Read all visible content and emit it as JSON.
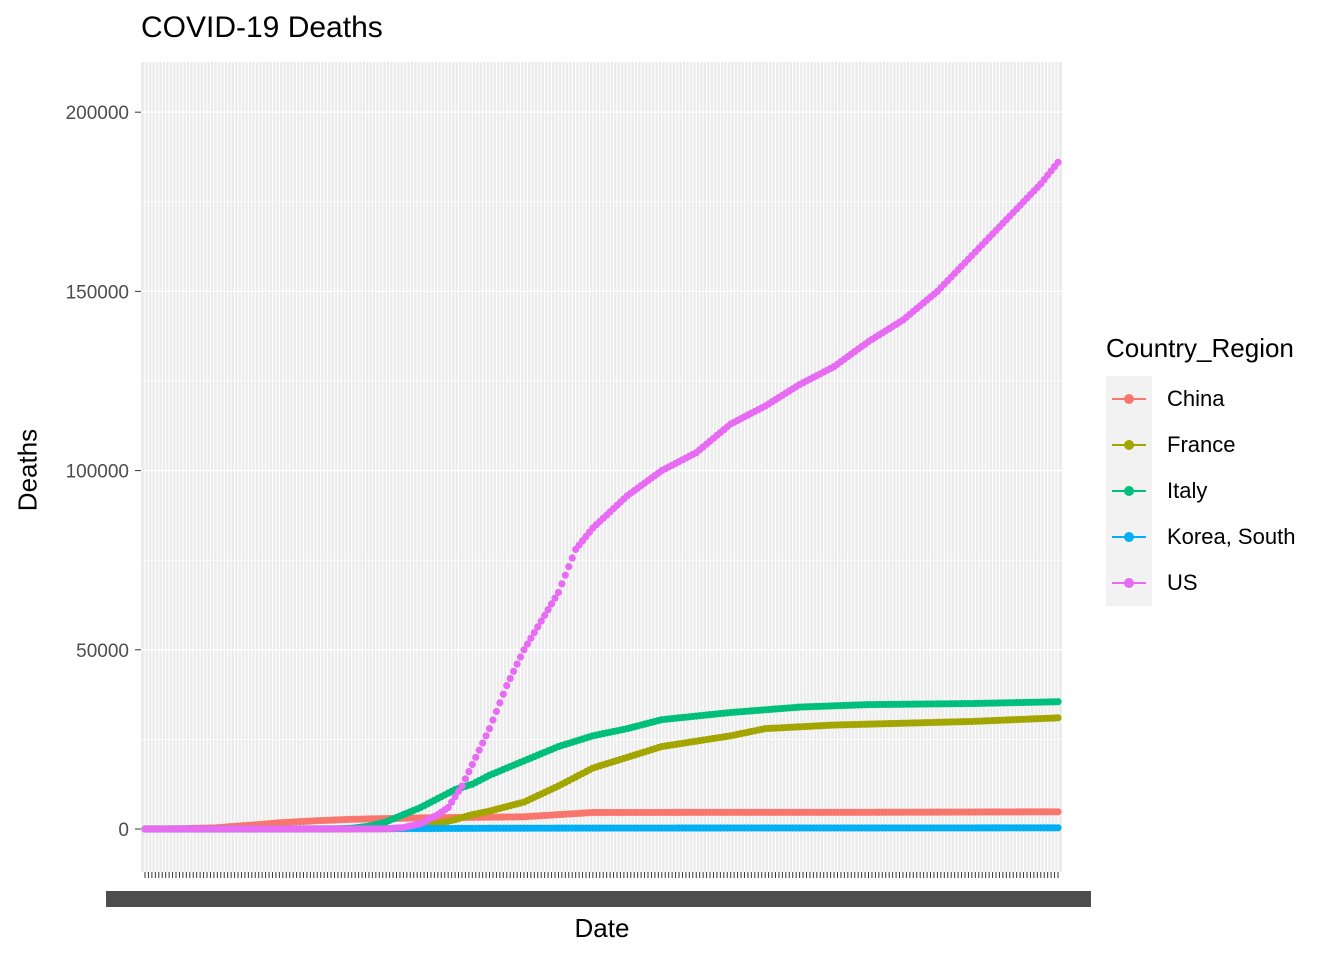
{
  "chart_data": {
    "type": "scatter",
    "title": "COVID-19 Deaths",
    "xlabel": "Date",
    "ylabel": "Deaths",
    "ylim": [
      -12000,
      214000
    ],
    "yticks": [
      0,
      50000,
      100000,
      150000,
      200000
    ],
    "x_tick_count": 266,
    "x_tick_labels_overplotted": true,
    "grid": true,
    "legend": {
      "title": "Country_Region",
      "placement": "right"
    },
    "series": [
      {
        "name": "China",
        "color": "#F8766D",
        "values": [
          [
            0,
            17
          ],
          [
            10,
            80
          ],
          [
            20,
            300
          ],
          [
            30,
            1000
          ],
          [
            40,
            1800
          ],
          [
            50,
            2300
          ],
          [
            60,
            2700
          ],
          [
            70,
            2900
          ],
          [
            80,
            3100
          ],
          [
            90,
            3200
          ],
          [
            100,
            3300
          ],
          [
            110,
            3400
          ],
          [
            130,
            4600
          ],
          [
            160,
            4634
          ],
          [
            200,
            4634
          ],
          [
            230,
            4700
          ],
          [
            265,
            4800
          ]
        ]
      },
      {
        "name": "France",
        "color": "#A3A500",
        "values": [
          [
            0,
            0
          ],
          [
            60,
            2
          ],
          [
            70,
            40
          ],
          [
            75,
            200
          ],
          [
            80,
            700
          ],
          [
            85,
            1500
          ],
          [
            90,
            2600
          ],
          [
            95,
            4000
          ],
          [
            100,
            5000
          ],
          [
            110,
            7500
          ],
          [
            120,
            12000
          ],
          [
            130,
            17000
          ],
          [
            140,
            20000
          ],
          [
            150,
            23000
          ],
          [
            170,
            26000
          ],
          [
            180,
            28000
          ],
          [
            200,
            29000
          ],
          [
            220,
            29500
          ],
          [
            240,
            30000
          ],
          [
            265,
            31000
          ]
        ]
      },
      {
        "name": "Italy",
        "color": "#00BF7D",
        "values": [
          [
            0,
            0
          ],
          [
            50,
            3
          ],
          [
            55,
            30
          ],
          [
            60,
            200
          ],
          [
            65,
            800
          ],
          [
            70,
            2000
          ],
          [
            75,
            4000
          ],
          [
            80,
            6000
          ],
          [
            85,
            8500
          ],
          [
            90,
            11000
          ],
          [
            95,
            12500
          ],
          [
            100,
            15000
          ],
          [
            110,
            19000
          ],
          [
            120,
            23000
          ],
          [
            130,
            26000
          ],
          [
            140,
            28000
          ],
          [
            150,
            30500
          ],
          [
            170,
            32500
          ],
          [
            190,
            34000
          ],
          [
            210,
            34700
          ],
          [
            240,
            35000
          ],
          [
            265,
            35500
          ]
        ]
      },
      {
        "name": "Korea, South",
        "color": "#00B0F6",
        "values": [
          [
            0,
            0
          ],
          [
            40,
            10
          ],
          [
            60,
            60
          ],
          [
            80,
            120
          ],
          [
            100,
            200
          ],
          [
            130,
            250
          ],
          [
            160,
            270
          ],
          [
            200,
            280
          ],
          [
            240,
            300
          ],
          [
            265,
            320
          ]
        ]
      },
      {
        "name": "US",
        "color": "#E76BF3",
        "values": [
          [
            0,
            0
          ],
          [
            50,
            1
          ],
          [
            60,
            10
          ],
          [
            70,
            60
          ],
          [
            75,
            400
          ],
          [
            80,
            1500
          ],
          [
            85,
            4000
          ],
          [
            88,
            6000
          ],
          [
            92,
            12000
          ],
          [
            96,
            20000
          ],
          [
            100,
            28000
          ],
          [
            105,
            40000
          ],
          [
            110,
            50000
          ],
          [
            115,
            58000
          ],
          [
            120,
            66000
          ],
          [
            125,
            78000
          ],
          [
            130,
            84000
          ],
          [
            140,
            93000
          ],
          [
            150,
            100000
          ],
          [
            160,
            105000
          ],
          [
            170,
            113000
          ],
          [
            180,
            118000
          ],
          [
            190,
            124000
          ],
          [
            200,
            129000
          ],
          [
            210,
            136000
          ],
          [
            220,
            142000
          ],
          [
            230,
            150000
          ],
          [
            240,
            160000
          ],
          [
            250,
            170000
          ],
          [
            260,
            180000
          ],
          [
            265,
            186000
          ]
        ]
      }
    ]
  }
}
